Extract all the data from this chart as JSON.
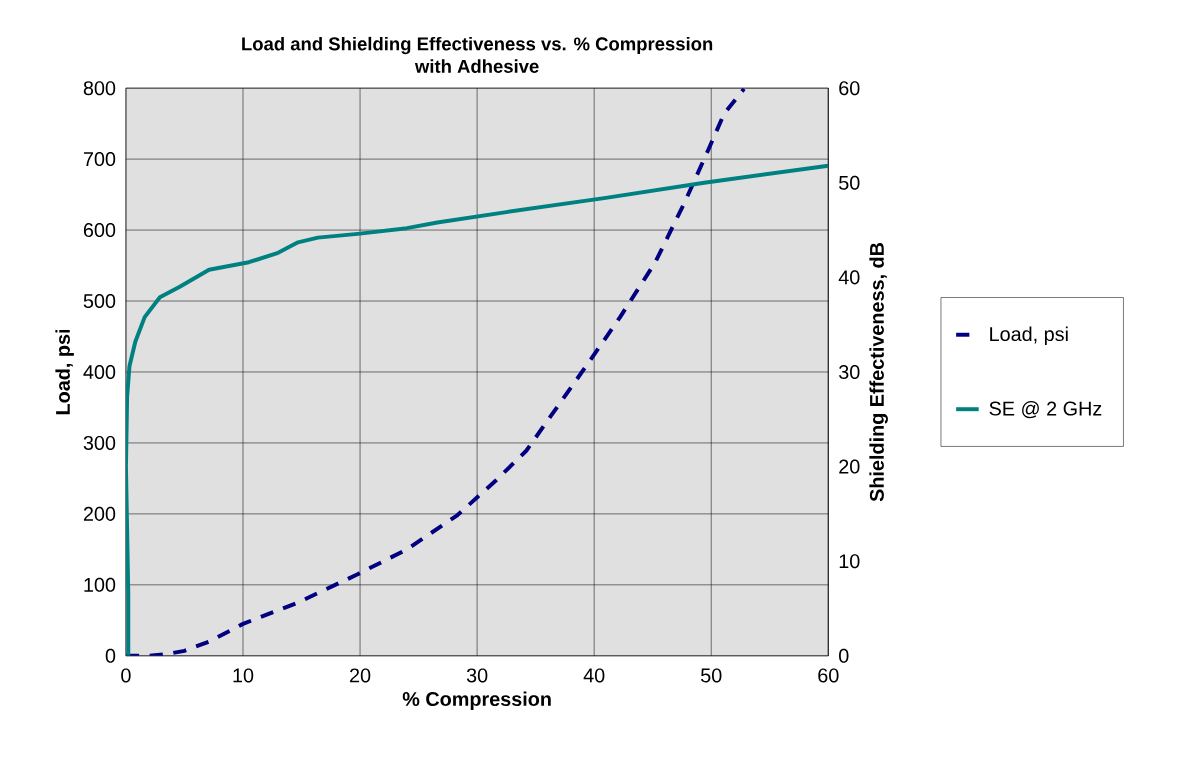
{
  "chart_data": {
    "type": "line",
    "title": "Load and Shielding Effectiveness vs. % Compression",
    "subtitle": "with Adhesive",
    "xlabel": "% Compression",
    "ylabel": "Load, psi",
    "y2label": "Shielding Effectiveness, dB",
    "xlim": [
      0,
      60
    ],
    "xticks": [
      0,
      10,
      20,
      30,
      40,
      50,
      60
    ],
    "ylim": [
      0,
      800
    ],
    "yticks": [
      0,
      100,
      200,
      300,
      400,
      500,
      600,
      700,
      800
    ],
    "y2lim": [
      0,
      60
    ],
    "y2ticks": [
      0,
      10,
      20,
      30,
      40,
      50,
      60
    ],
    "grid": true,
    "legend": "right",
    "series": [
      {
        "name": "Load, psi",
        "color": "#000080",
        "line_style": "dashed",
        "x": [
          0,
          2,
          3.7,
          5,
          7.1,
          10,
          14.7,
          19.8,
          24,
          28.3,
          31.6,
          34.2,
          36.3,
          39.3,
          42.2,
          45.2,
          47.7,
          49.8,
          51.1,
          52.8
        ],
        "values": [
          0,
          0,
          3,
          7,
          20,
          45,
          75,
          115,
          150,
          198,
          247,
          289,
          338,
          408,
          477,
          554,
          638,
          715,
          764,
          799
        ]
      },
      {
        "name": "SE @ 2 GHz",
        "color": "#008080",
        "line_style": "solid",
        "axis": "y2",
        "x": [
          0.2,
          0.2,
          0,
          0.1,
          0.3,
          0.8,
          1.6,
          2.9,
          4.6,
          7.1,
          10.5,
          13,
          14.7,
          16.4,
          19.8,
          24,
          26.6,
          32.5,
          41,
          49.4,
          60
        ],
        "values": [
          0,
          6.5,
          20,
          27.4,
          30.6,
          33.2,
          35.8,
          37.9,
          39,
          40.8,
          41.6,
          42.6,
          43.7,
          44.2,
          44.6,
          45.2,
          45.8,
          46.9,
          48.4,
          50,
          51.8
        ]
      }
    ]
  }
}
